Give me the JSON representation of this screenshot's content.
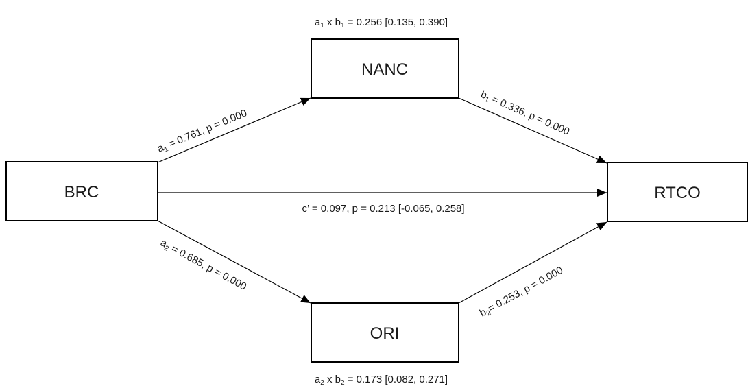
{
  "nodes": {
    "brc": "BRC",
    "nanc": "NANC",
    "ori": "ORI",
    "rtco": "RTCO"
  },
  "paths": {
    "a1": {
      "var": "a",
      "sub": "1",
      "rest": " = 0.761, p = 0.000"
    },
    "b1": {
      "var": "b",
      "sub": "1",
      "rest": " = 0.336, p = 0.000"
    },
    "a2": {
      "var": "a",
      "sub": "2",
      "rest": " = 0.685, p = 0.000"
    },
    "b2": {
      "var": "b",
      "sub": "2",
      "rest": "= 0.253, p = 0.000"
    },
    "c_prime": {
      "text": "c’ = 0.097, p = 0.213 [-0.065, 0.258]"
    }
  },
  "indirect": {
    "top": {
      "a": "a",
      "a_sub": "1",
      "mid": " x b",
      "b_sub": "1",
      "rest": " = 0.256 [0.135, 0.390]"
    },
    "bottom": {
      "a": "a",
      "a_sub": "2",
      "mid": " x b",
      "b_sub": "2",
      "rest": " = 0.173 [0.082, 0.271]"
    }
  },
  "colors": {
    "stroke": "#000000",
    "text": "#1a1a1a"
  }
}
